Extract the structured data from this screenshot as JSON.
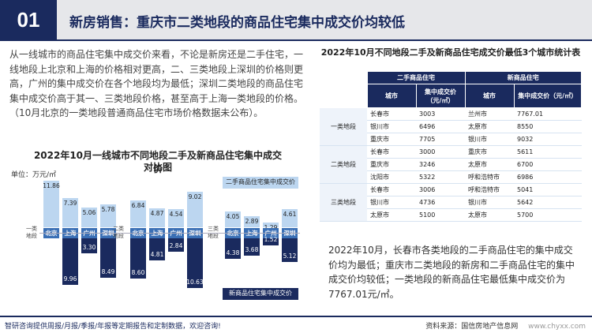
{
  "header": {
    "number": "01",
    "title": "新房销售：重庆市二类地段的商品住宅集中成交价均较低"
  },
  "intro_text": "从一线城市的商品住宅集中成交价来看，不论是新房还是二手住宅，一线地段上北京和上海的价格相对更高，二、三类地段上深圳的价格则更高，广州的集中成交价在各个地段均为最低；深圳二类地段的商品住宅集中成交价高于其一、三类地段价格，甚至高于上海一类地段的价格。（10月北京的一类地段普通商品住宅市场价格数据未公布）。",
  "chart": {
    "title_line1": "2022年10月一线城市不同地段二手及新商品住宅集中成交价",
    "title_line2": "对比图",
    "unit": "单位：万元/㎡",
    "legend_light": "二手商品住宅集中成交价",
    "legend_dark": "新商品住宅集中成交价",
    "colors": {
      "secondhand": "#bcd6f0",
      "new": "#1a2a5e",
      "city_tag": "#3a6fb5"
    }
  },
  "chart_data": {
    "type": "bar",
    "groups": [
      {
        "label": "一类地段",
        "label_l1": "一类",
        "label_l2": "地段",
        "cities": [
          "北京",
          "上海",
          "广州",
          "深圳"
        ],
        "secondhand": [
          11.86,
          7.39,
          5.06,
          5.78
        ],
        "new": [
          null,
          9.96,
          3.3,
          8.49
        ]
      },
      {
        "label": "二类地段",
        "label_l1": "二类",
        "label_l2": "地段",
        "cities": [
          "北京",
          "上海",
          "广州",
          "深圳"
        ],
        "secondhand": [
          6.84,
          4.87,
          4.54,
          9.02
        ],
        "new": [
          8.6,
          4.81,
          2.84,
          10.63
        ]
      },
      {
        "label": "三类地段",
        "label_l1": "三类",
        "label_l2": "地段",
        "cities": [
          "北京",
          "上海",
          "广州",
          "深圳"
        ],
        "secondhand": [
          4.05,
          2.89,
          1.29,
          4.61
        ],
        "new": [
          4.38,
          3.68,
          1.52,
          5.12
        ]
      }
    ]
  },
  "table": {
    "title": "2022年10月不同地段二手及新商品住宅成交价最低3个城市统计表",
    "head_secondhand": "二手商品住宅",
    "head_new": "新商品住宅",
    "col_city": "城市",
    "col_price": "集中成交价（元/㎡）",
    "col_price_new": "集中成交价（元/㎡）",
    "groups": [
      {
        "label": "一类地段",
        "rows": [
          {
            "c1": "长春市",
            "p1": "3003",
            "c2": "兰州市",
            "p2": "7767.01"
          },
          {
            "c1": "银川市",
            "p1": "6496",
            "c2": "太原市",
            "p2": "8550"
          },
          {
            "c1": "重庆市",
            "p1": "7705",
            "c2": "银川市",
            "p2": "9032"
          }
        ]
      },
      {
        "label": "二类地段",
        "rows": [
          {
            "c1": "长春市",
            "p1": "3000",
            "c2": "重庆市",
            "p2": "5611"
          },
          {
            "c1": "重庆市",
            "p1": "3246",
            "c2": "太原市",
            "p2": "6700"
          },
          {
            "c1": "沈阳市",
            "p1": "5322",
            "c2": "呼和浩特市",
            "p2": "6986"
          }
        ]
      },
      {
        "label": "三类地段",
        "rows": [
          {
            "c1": "长春市",
            "p1": "3006",
            "c2": "呼和浩特市",
            "p2": "5041"
          },
          {
            "c1": "银川市",
            "p1": "4736",
            "c2": "银川市",
            "p2": "5642"
          },
          {
            "c1": "太原市",
            "p1": "5100",
            "c2": "太原市",
            "p2": "5700"
          }
        ]
      }
    ]
  },
  "summary_text": "2022年10月，长春市各类地段的二手商品住宅的集中成交价均为最低；重庆市二类地段的新房和二手商品住宅的集中成交价均较低；一类地段的新商品住宅最低集中成交价为7767.01元/㎡。",
  "footer": {
    "left": "智研咨询提供周报/月报/季报/年报等定期报告和定制数据，欢迎咨询!",
    "source": "资料来源：国信房地产信息网",
    "url": "www.chyxx.com"
  }
}
